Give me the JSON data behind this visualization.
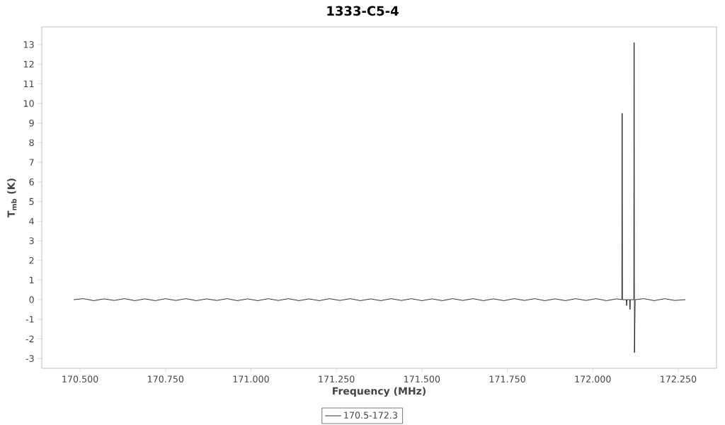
{
  "chart_data": {
    "type": "line",
    "title": "1333-C5-4",
    "xlabel": "Frequency (MHz)",
    "ylabel": "T$_{mb}$ (K)",
    "xlim": [
      170.388,
      172.362
    ],
    "ylim": [
      -3.5,
      13.9
    ],
    "xticks": [
      {
        "value": 170.5,
        "label": "170.500"
      },
      {
        "value": 170.75,
        "label": "170.750"
      },
      {
        "value": 171,
        "label": "171.000"
      },
      {
        "value": 171.25,
        "label": "171.250"
      },
      {
        "value": 171.5,
        "label": "171.500"
      },
      {
        "value": 171.75,
        "label": "171.750"
      },
      {
        "value": 172,
        "label": "172.000"
      },
      {
        "value": 172.25,
        "label": "172.250"
      }
    ],
    "yticks": [
      -3,
      -2,
      -1,
      0,
      1,
      2,
      3,
      4,
      5,
      6,
      7,
      8,
      9,
      10,
      11,
      12,
      13
    ],
    "legend": "bottom",
    "series": [
      {
        "name": "170.5-172.3",
        "color": "#000000",
        "x": [
          170.481,
          170.51,
          170.54,
          170.57,
          170.6,
          170.63,
          170.66,
          170.69,
          170.72,
          170.75,
          170.78,
          170.81,
          170.84,
          170.87,
          170.9,
          170.93,
          170.96,
          170.99,
          171.02,
          171.05,
          171.08,
          171.11,
          171.14,
          171.17,
          171.2,
          171.23,
          171.26,
          171.29,
          171.32,
          171.35,
          171.38,
          171.41,
          171.44,
          171.47,
          171.5,
          171.53,
          171.56,
          171.59,
          171.62,
          171.65,
          171.68,
          171.71,
          171.74,
          171.77,
          171.8,
          171.83,
          171.86,
          171.89,
          171.92,
          171.95,
          171.98,
          172.01,
          172.04,
          172.07,
          172.085,
          172.086,
          172.087,
          172.098,
          172.099,
          172.1,
          172.108,
          172.109,
          172.11,
          172.12,
          172.121,
          172.122,
          172.124,
          172.15,
          172.18,
          172.21,
          172.24,
          172.271
        ],
        "values": [
          0.0,
          0.05,
          -0.05,
          0.04,
          -0.04,
          0.05,
          -0.05,
          0.04,
          -0.05,
          0.05,
          -0.04,
          0.05,
          -0.05,
          0.04,
          -0.04,
          0.05,
          -0.05,
          0.04,
          -0.05,
          0.05,
          -0.04,
          0.05,
          -0.05,
          0.04,
          -0.05,
          0.05,
          -0.04,
          0.05,
          -0.05,
          0.04,
          -0.05,
          0.05,
          -0.04,
          0.05,
          -0.05,
          0.04,
          -0.05,
          0.05,
          -0.04,
          0.05,
          -0.05,
          0.04,
          -0.05,
          0.05,
          -0.04,
          0.05,
          -0.05,
          0.04,
          -0.05,
          0.05,
          -0.04,
          0.05,
          -0.05,
          0.04,
          0.0,
          9.5,
          0.0,
          0.0,
          -0.3,
          0.0,
          0.0,
          -0.5,
          0.0,
          0.0,
          13.1,
          -2.7,
          0.0,
          0.05,
          -0.05,
          0.05,
          -0.04,
          0.0
        ]
      }
    ]
  }
}
